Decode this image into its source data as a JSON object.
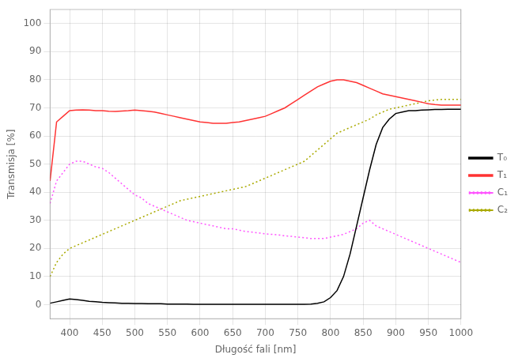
{
  "chart_data": {
    "type": "line",
    "xlabel": "Długość fali [nm]",
    "ylabel": "Transmisja [%]",
    "x": [
      370,
      380,
      390,
      400,
      410,
      420,
      430,
      440,
      450,
      460,
      470,
      480,
      490,
      500,
      510,
      520,
      530,
      540,
      550,
      560,
      570,
      580,
      590,
      600,
      610,
      620,
      630,
      640,
      650,
      660,
      670,
      680,
      690,
      700,
      710,
      720,
      730,
      740,
      750,
      760,
      770,
      780,
      790,
      800,
      810,
      820,
      830,
      840,
      850,
      860,
      870,
      880,
      890,
      900,
      910,
      920,
      930,
      940,
      950,
      960,
      970,
      980,
      990,
      1000
    ],
    "series": [
      {
        "name": "T₀",
        "color": "#000000",
        "line_style": "solid",
        "values": [
          0.5,
          1.0,
          1.5,
          2.0,
          1.8,
          1.5,
          1.2,
          1.0,
          0.8,
          0.7,
          0.6,
          0.5,
          0.5,
          0.4,
          0.4,
          0.3,
          0.3,
          0.3,
          0.2,
          0.2,
          0.2,
          0.2,
          0.1,
          0.1,
          0.1,
          0.1,
          0.1,
          0.1,
          0.1,
          0.1,
          0.1,
          0.1,
          0.1,
          0.1,
          0.1,
          0.1,
          0.1,
          0.1,
          0.1,
          0.1,
          0.2,
          0.5,
          1.0,
          2.5,
          5.0,
          10.0,
          18.0,
          28.0,
          38.0,
          48.0,
          57.0,
          63.0,
          66.0,
          68.0,
          68.5,
          69.0,
          69.0,
          69.2,
          69.3,
          69.4,
          69.4,
          69.5,
          69.5,
          69.5
        ]
      },
      {
        "name": "T₁",
        "color": "#ff3333",
        "line_style": "solid",
        "values": [
          44,
          65,
          67,
          69,
          69.2,
          69.3,
          69.2,
          69.0,
          69.0,
          68.8,
          68.7,
          68.9,
          69.0,
          69.2,
          69.0,
          68.8,
          68.5,
          68.0,
          67.5,
          67.0,
          66.5,
          66.0,
          65.5,
          65.0,
          64.8,
          64.5,
          64.5,
          64.5,
          64.8,
          65.0,
          65.5,
          66.0,
          66.5,
          67.0,
          68.0,
          69.0,
          70.0,
          71.5,
          73.0,
          74.5,
          76.0,
          77.5,
          78.5,
          79.5,
          80.0,
          80.0,
          79.5,
          79.0,
          78.0,
          77.0,
          76.0,
          75.0,
          74.5,
          74.0,
          73.5,
          73.0,
          72.5,
          72.0,
          71.5,
          71.2,
          71.0,
          71.0,
          71.0,
          71.0
        ]
      },
      {
        "name": "C₁",
        "color": "#ff55ff",
        "line_style": "dotted",
        "values": [
          36,
          44,
          47,
          50,
          51,
          51,
          50,
          49,
          48.5,
          47,
          45,
          43,
          41,
          39,
          38,
          36,
          35,
          34,
          33,
          32,
          31,
          30,
          29.5,
          29,
          28.5,
          28,
          27.5,
          27,
          27,
          26.5,
          26,
          25.8,
          25.5,
          25.2,
          25,
          24.8,
          24.5,
          24.3,
          24,
          23.8,
          23.5,
          23.5,
          23.5,
          24,
          24.5,
          25,
          26,
          27,
          29,
          30,
          28,
          27,
          26,
          25,
          24,
          23,
          22,
          21,
          20,
          19,
          18,
          17,
          16,
          15
        ]
      },
      {
        "name": "C₂",
        "color": "#aaaa00",
        "line_style": "dotted",
        "values": [
          10,
          15,
          18,
          20,
          21,
          22,
          23,
          24,
          25,
          26,
          27,
          28,
          29,
          30,
          31,
          32,
          33,
          34,
          35,
          36,
          37,
          37.5,
          38,
          38.5,
          39,
          39.5,
          40,
          40.5,
          41,
          41.5,
          42,
          43,
          44,
          45,
          46,
          47,
          48,
          49,
          50,
          51,
          53,
          55,
          57,
          59,
          61,
          62,
          63,
          64,
          65,
          66,
          67.5,
          68.5,
          69.5,
          70,
          70.5,
          71,
          71.5,
          72,
          72.5,
          72.8,
          73,
          73,
          73,
          73
        ]
      }
    ],
    "xlim": [
      370,
      1000
    ],
    "ylim": [
      -5,
      105
    ],
    "xticks": [
      400,
      450,
      500,
      550,
      600,
      650,
      700,
      750,
      800,
      850,
      900,
      950,
      1000
    ],
    "yticks": [
      0,
      10,
      20,
      30,
      40,
      50,
      60,
      70,
      80,
      90,
      100
    ],
    "grid": true,
    "legend": "right"
  }
}
